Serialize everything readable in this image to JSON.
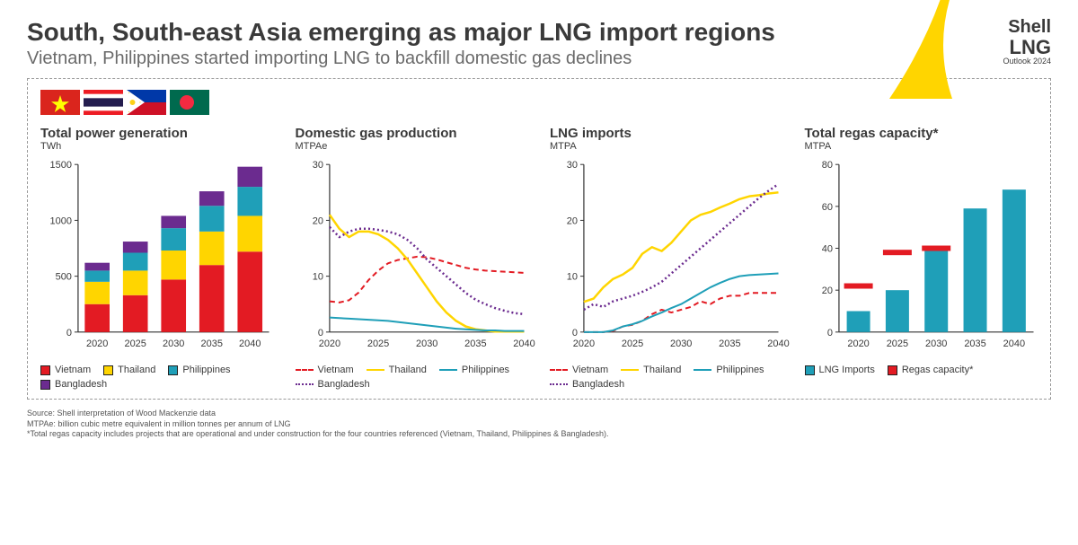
{
  "header": {
    "title": "South, South-east Asia emerging as major LNG import regions",
    "subtitle": "Vietnam, Philippines started importing LNG to backfill domestic gas declines",
    "brand_shell": "Shell",
    "brand_lng": "LNG",
    "brand_outlook": "Outlook 2024"
  },
  "colors": {
    "vietnam": "#e31b23",
    "thailand": "#ffd500",
    "philippines": "#1f9fb8",
    "bangladesh": "#6b2b8f",
    "axis": "#333333",
    "grid": "#cccccc",
    "lng_imports_bar": "#1f9fb8",
    "regas_bar": "#e31b23",
    "text": "#3a3a3a"
  },
  "flags": [
    "vietnam",
    "thailand",
    "philippines",
    "bangladesh"
  ],
  "chart1": {
    "title": "Total power generation",
    "unit": "TWh",
    "type": "stacked-bar",
    "categories": [
      "2020",
      "2025",
      "2030",
      "2035",
      "2040"
    ],
    "ylim": [
      0,
      1500
    ],
    "ytick_step": 500,
    "series": {
      "Vietnam": [
        250,
        330,
        470,
        600,
        720
      ],
      "Thailand": [
        200,
        220,
        260,
        300,
        320
      ],
      "Philippines": [
        100,
        160,
        200,
        230,
        260
      ],
      "Bangladesh": [
        70,
        100,
        110,
        130,
        180
      ]
    },
    "order": [
      "Vietnam",
      "Thailand",
      "Philippines",
      "Bangladesh"
    ],
    "bar_width": 0.65,
    "legend": [
      {
        "label": "Vietnam",
        "color_key": "vietnam"
      },
      {
        "label": "Thailand",
        "color_key": "thailand"
      },
      {
        "label": "Philippines",
        "color_key": "philippines"
      },
      {
        "label": "Bangladesh",
        "color_key": "bangladesh"
      }
    ]
  },
  "chart2": {
    "title": "Domestic gas production",
    "unit": "MTPAe",
    "type": "line",
    "ylim": [
      0,
      30
    ],
    "ytick_step": 10,
    "x": [
      2020,
      2021,
      2022,
      2023,
      2024,
      2025,
      2026,
      2027,
      2028,
      2029,
      2030,
      2031,
      2032,
      2033,
      2034,
      2035,
      2036,
      2037,
      2038,
      2039,
      2040
    ],
    "xticks": [
      2020,
      2025,
      2030,
      2035,
      2040
    ],
    "series": [
      {
        "label": "Vietnam",
        "color_key": "vietnam",
        "style": "dashed",
        "width": 2,
        "y": [
          5.5,
          5.3,
          5.7,
          7.1,
          9.3,
          11.0,
          12.3,
          12.9,
          13.2,
          13.5,
          13.4,
          13.0,
          12.5,
          12.0,
          11.5,
          11.2,
          11.0,
          10.9,
          10.8,
          10.7,
          10.6
        ]
      },
      {
        "label": "Thailand",
        "color_key": "thailand",
        "style": "solid",
        "width": 2.5,
        "y": [
          21.0,
          18.5,
          17.0,
          18.0,
          18.0,
          17.5,
          16.5,
          15.0,
          13.0,
          10.5,
          8.0,
          5.5,
          3.5,
          2.0,
          1.0,
          0.5,
          0.3,
          0.1,
          0.1,
          0.1,
          0.1
        ]
      },
      {
        "label": "Philippines",
        "color_key": "philippines",
        "style": "solid",
        "width": 2,
        "y": [
          2.6,
          2.5,
          2.4,
          2.3,
          2.2,
          2.1,
          2.0,
          1.8,
          1.6,
          1.4,
          1.2,
          1.0,
          0.8,
          0.6,
          0.5,
          0.4,
          0.3,
          0.3,
          0.2,
          0.2,
          0.2
        ]
      },
      {
        "label": "Bangladesh",
        "color_key": "bangladesh",
        "style": "dotted",
        "width": 2.5,
        "y": [
          18.8,
          17.0,
          18.0,
          18.5,
          18.5,
          18.3,
          18.0,
          17.5,
          16.5,
          15.0,
          13.0,
          11.5,
          10.0,
          8.5,
          7.0,
          5.8,
          5.0,
          4.3,
          3.8,
          3.4,
          3.2
        ]
      }
    ],
    "legend": [
      {
        "label": "Vietnam",
        "color_key": "vietnam",
        "style": "dashed"
      },
      {
        "label": "Thailand",
        "color_key": "thailand",
        "style": "solid"
      },
      {
        "label": "Philippines",
        "color_key": "philippines",
        "style": "solid"
      },
      {
        "label": "Bangladesh",
        "color_key": "bangladesh",
        "style": "dotted"
      }
    ]
  },
  "chart3": {
    "title": "LNG imports",
    "unit": "MTPA",
    "type": "line",
    "ylim": [
      0,
      30
    ],
    "ytick_step": 10,
    "x": [
      2020,
      2021,
      2022,
      2023,
      2024,
      2025,
      2026,
      2027,
      2028,
      2029,
      2030,
      2031,
      2032,
      2033,
      2034,
      2035,
      2036,
      2037,
      2038,
      2039,
      2040
    ],
    "xticks": [
      2020,
      2025,
      2030,
      2035,
      2040
    ],
    "series": [
      {
        "label": "Vietnam",
        "color_key": "vietnam",
        "style": "dashed",
        "width": 2,
        "y": [
          0.0,
          0.0,
          0.0,
          0.2,
          1.0,
          1.3,
          2.0,
          3.2,
          4.0,
          3.5,
          4.0,
          4.5,
          5.5,
          5.0,
          6.0,
          6.5,
          6.5,
          7.0,
          7.0,
          7.0,
          7.0
        ]
      },
      {
        "label": "Thailand",
        "color_key": "thailand",
        "style": "solid",
        "width": 2.5,
        "y": [
          5.4,
          6.0,
          8.0,
          9.5,
          10.3,
          11.5,
          14.0,
          15.2,
          14.5,
          16.0,
          18.0,
          20.0,
          21.0,
          21.5,
          22.3,
          23.0,
          23.8,
          24.3,
          24.5,
          24.8,
          25.0
        ]
      },
      {
        "label": "Philippines",
        "color_key": "philippines",
        "style": "solid",
        "width": 2,
        "y": [
          0.0,
          0.0,
          0.0,
          0.3,
          1.0,
          1.4,
          2.0,
          2.8,
          3.5,
          4.3,
          5.0,
          6.0,
          7.0,
          8.0,
          8.8,
          9.5,
          10.0,
          10.2,
          10.3,
          10.4,
          10.5
        ]
      },
      {
        "label": "Bangladesh",
        "color_key": "bangladesh",
        "style": "dotted",
        "width": 2.5,
        "y": [
          4.0,
          5.0,
          4.5,
          5.5,
          6.0,
          6.5,
          7.2,
          8.0,
          9.0,
          10.5,
          12.0,
          13.5,
          15.0,
          16.5,
          18.0,
          19.5,
          21.0,
          22.5,
          24.0,
          25.3,
          26.5
        ]
      }
    ],
    "legend": [
      {
        "label": "Vietnam",
        "color_key": "vietnam",
        "style": "dashed"
      },
      {
        "label": "Thailand",
        "color_key": "thailand",
        "style": "solid"
      },
      {
        "label": "Philippines",
        "color_key": "philippines",
        "style": "solid"
      },
      {
        "label": "Bangladesh",
        "color_key": "bangladesh",
        "style": "dotted"
      }
    ]
  },
  "chart4": {
    "title": "Total regas capacity*",
    "unit": "MTPA",
    "type": "bar-with-marker",
    "categories": [
      "2020",
      "2025",
      "2030",
      "2035",
      "2040"
    ],
    "ylim": [
      0,
      80
    ],
    "ytick_step": 20,
    "bars": {
      "label": "LNG Imports",
      "color_key": "lng_imports_bar",
      "values": [
        10,
        20,
        40,
        59,
        68
      ]
    },
    "marker": {
      "label": "Regas capacity*",
      "color_key": "regas_bar",
      "values": [
        22,
        38,
        40,
        null,
        null
      ],
      "thickness": 6
    },
    "bar_width": 0.6,
    "legend": [
      {
        "label": "LNG Imports",
        "color_key": "lng_imports_bar"
      },
      {
        "label": "Regas capacity*",
        "color_key": "regas_bar"
      }
    ]
  },
  "source": {
    "line1": "Source: Shell interpretation of Wood Mackenzie data",
    "line2": "MTPAe: billion cubic metre equivalent in million tonnes per annum of LNG",
    "line3": "*Total regas capacity includes projects that are operational and under construction for the four countries referenced (Vietnam, Thailand, Philippines & Bangladesh)."
  }
}
